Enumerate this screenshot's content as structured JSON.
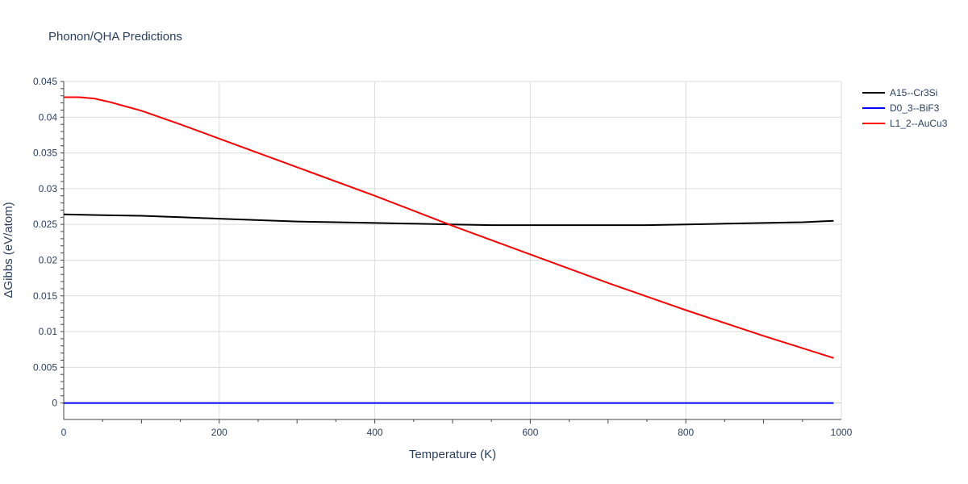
{
  "chart_data": {
    "type": "line",
    "title": "Phonon/QHA Predictions",
    "xlabel": "Temperature (K)",
    "ylabel": "ΔGibbs (eV/atom)",
    "xlim": [
      0,
      1000
    ],
    "ylim": [
      -0.0023,
      0.045
    ],
    "x_ticks": [
      0,
      200,
      400,
      600,
      800,
      1000
    ],
    "x_tick_labels": [
      "0",
      "200",
      "400",
      "600",
      "800",
      "1000"
    ],
    "y_ticks": [
      0,
      0.005,
      0.01,
      0.015,
      0.02,
      0.025,
      0.03,
      0.035,
      0.04,
      0.045
    ],
    "y_tick_labels": [
      "0",
      "0.005",
      "0.01",
      "0.015",
      "0.02",
      "0.025",
      "0.03",
      "0.035",
      "0.04",
      "0.045"
    ],
    "grid": true,
    "legend_position": "top-right",
    "series": [
      {
        "name": "A15--Cr3Si",
        "color": "#000000",
        "x": [
          0,
          50,
          100,
          150,
          200,
          250,
          300,
          350,
          400,
          450,
          500,
          550,
          600,
          650,
          700,
          750,
          800,
          850,
          900,
          950,
          990
        ],
        "y": [
          0.0264,
          0.0263,
          0.0262,
          0.026,
          0.0258,
          0.0256,
          0.0254,
          0.0253,
          0.0252,
          0.0251,
          0.025,
          0.0249,
          0.0249,
          0.0249,
          0.0249,
          0.0249,
          0.025,
          0.0251,
          0.0252,
          0.0253,
          0.0255
        ]
      },
      {
        "name": "D0_3--BiF3",
        "color": "#0000ff",
        "x": [
          0,
          990
        ],
        "y": [
          0,
          0
        ]
      },
      {
        "name": "L1_2--AuCu3",
        "color": "#ff0000",
        "x": [
          0,
          20,
          40,
          60,
          80,
          100,
          150,
          200,
          300,
          400,
          500,
          600,
          700,
          800,
          900,
          990
        ],
        "y": [
          0.0428,
          0.0428,
          0.0426,
          0.0421,
          0.0415,
          0.0409,
          0.039,
          0.037,
          0.033,
          0.029,
          0.0248,
          0.0208,
          0.0168,
          0.013,
          0.0094,
          0.0063
        ]
      }
    ]
  }
}
